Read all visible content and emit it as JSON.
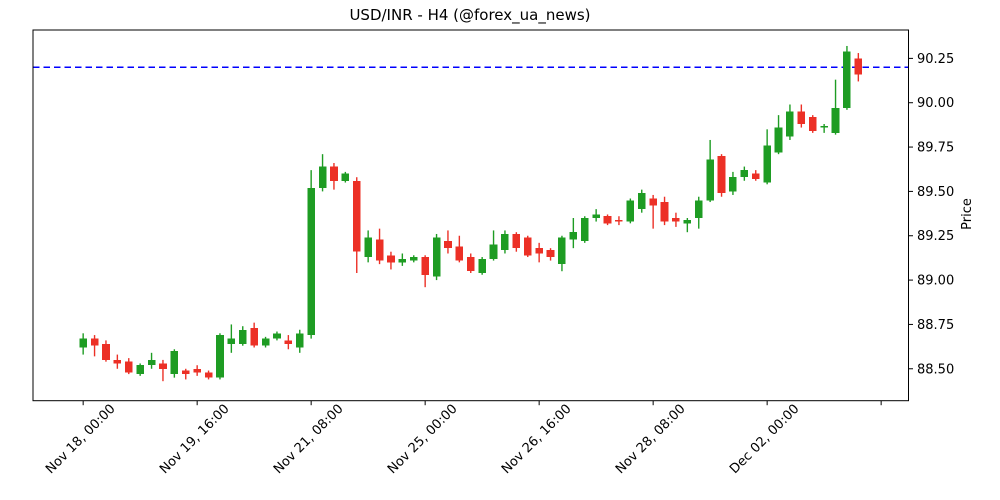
{
  "title": "USD/INR - H4 (@forex_ua_news)",
  "y_axis": {
    "label": "Price",
    "ticks": [
      "88.50",
      "88.75",
      "89.00",
      "89.25",
      "89.50",
      "89.75",
      "90.00",
      "90.25"
    ]
  },
  "x_axis": {
    "ticks": [
      {
        "index": 0,
        "label": "Nov 18, 00:00"
      },
      {
        "index": 10,
        "label": "Nov 19, 16:00"
      },
      {
        "index": 20,
        "label": "Nov 21, 08:00"
      },
      {
        "index": 30,
        "label": "Nov 25, 00:00"
      },
      {
        "index": 40,
        "label": "Nov 26, 16:00"
      },
      {
        "index": 50,
        "label": "Nov 28, 08:00"
      },
      {
        "index": 60,
        "label": "Dec 02, 00:00"
      },
      {
        "index": 70,
        "label": ""
      }
    ]
  },
  "colors": {
    "up": "#1e9c23",
    "down": "#ec3026",
    "hline": "#0000ff",
    "axis": "#000000"
  },
  "hline_price": 90.2,
  "chart_data": {
    "type": "candlestick",
    "symbol": "USD/INR",
    "timeframe": "H4",
    "title": "USD/INR - H4 (@forex_ua_news)",
    "ylabel": "Price",
    "grid": false,
    "legend": "none",
    "ylim": [
      88.32,
      90.41
    ],
    "x_index_range": [
      -4.4,
      72.4
    ],
    "hline": 90.2,
    "candles": [
      {
        "time": "Nov 18, 00:00",
        "o": 88.62,
        "h": 88.7,
        "l": 88.58,
        "c": 88.67
      },
      {
        "time": "Nov 18, 04:00",
        "o": 88.67,
        "h": 88.69,
        "l": 88.57,
        "c": 88.63
      },
      {
        "time": "Nov 18, 08:00",
        "o": 88.64,
        "h": 88.66,
        "l": 88.54,
        "c": 88.55
      },
      {
        "time": "Nov 18, 12:00",
        "o": 88.55,
        "h": 88.58,
        "l": 88.5,
        "c": 88.53
      },
      {
        "time": "Nov 18, 16:00",
        "o": 88.54,
        "h": 88.56,
        "l": 88.47,
        "c": 88.48
      },
      {
        "time": "Nov 18, 20:00",
        "o": 88.47,
        "h": 88.53,
        "l": 88.46,
        "c": 88.52
      },
      {
        "time": "Nov 19, 00:00",
        "o": 88.52,
        "h": 88.59,
        "l": 88.5,
        "c": 88.55
      },
      {
        "time": "Nov 19, 04:00",
        "o": 88.53,
        "h": 88.55,
        "l": 88.43,
        "c": 88.5
      },
      {
        "time": "Nov 19, 08:00",
        "o": 88.47,
        "h": 88.61,
        "l": 88.45,
        "c": 88.6
      },
      {
        "time": "Nov 19, 12:00",
        "o": 88.49,
        "h": 88.5,
        "l": 88.44,
        "c": 88.47
      },
      {
        "time": "Nov 19, 16:00",
        "o": 88.5,
        "h": 88.52,
        "l": 88.46,
        "c": 88.48
      },
      {
        "time": "Nov 19, 20:00",
        "o": 88.48,
        "h": 88.49,
        "l": 88.44,
        "c": 88.45
      },
      {
        "time": "Nov 20, 00:00",
        "o": 88.45,
        "h": 88.7,
        "l": 88.44,
        "c": 88.69
      },
      {
        "time": "Nov 20, 04:00",
        "o": 88.64,
        "h": 88.75,
        "l": 88.59,
        "c": 88.67
      },
      {
        "time": "Nov 20, 08:00",
        "o": 88.64,
        "h": 88.74,
        "l": 88.63,
        "c": 88.72
      },
      {
        "time": "Nov 20, 12:00",
        "o": 88.73,
        "h": 88.76,
        "l": 88.62,
        "c": 88.63
      },
      {
        "time": "Nov 20, 16:00",
        "o": 88.63,
        "h": 88.68,
        "l": 88.62,
        "c": 88.67
      },
      {
        "time": "Nov 20, 20:00",
        "o": 88.67,
        "h": 88.71,
        "l": 88.66,
        "c": 88.7
      },
      {
        "time": "Nov 21, 00:00",
        "o": 88.66,
        "h": 88.69,
        "l": 88.61,
        "c": 88.64
      },
      {
        "time": "Nov 21, 04:00",
        "o": 88.62,
        "h": 88.72,
        "l": 88.59,
        "c": 88.7
      },
      {
        "time": "Nov 21, 08:00",
        "o": 88.69,
        "h": 89.62,
        "l": 88.67,
        "c": 89.52
      },
      {
        "time": "Nov 21, 12:00",
        "o": 89.52,
        "h": 89.71,
        "l": 89.5,
        "c": 89.64
      },
      {
        "time": "Nov 21, 16:00",
        "o": 89.64,
        "h": 89.66,
        "l": 89.51,
        "c": 89.56
      },
      {
        "time": "Nov 21, 20:00",
        "o": 89.56,
        "h": 89.61,
        "l": 89.55,
        "c": 89.6
      },
      {
        "time": "Nov 22, 00:00",
        "o": 89.56,
        "h": 89.58,
        "l": 89.04,
        "c": 89.16
      },
      {
        "time": "Nov 22, 04:00",
        "o": 89.13,
        "h": 89.28,
        "l": 89.1,
        "c": 89.24
      },
      {
        "time": "Nov 22, 08:00",
        "o": 89.23,
        "h": 89.29,
        "l": 89.09,
        "c": 89.11
      },
      {
        "time": "Nov 22, 12:00",
        "o": 89.14,
        "h": 89.16,
        "l": 89.06,
        "c": 89.1
      },
      {
        "time": "Nov 22, 16:00",
        "o": 89.1,
        "h": 89.15,
        "l": 89.08,
        "c": 89.12
      },
      {
        "time": "Nov 22, 20:00",
        "o": 89.11,
        "h": 89.14,
        "l": 89.1,
        "c": 89.13
      },
      {
        "time": "Nov 25, 00:00",
        "o": 89.13,
        "h": 89.14,
        "l": 88.96,
        "c": 89.03
      },
      {
        "time": "Nov 25, 04:00",
        "o": 89.02,
        "h": 89.26,
        "l": 89.0,
        "c": 89.24
      },
      {
        "time": "Nov 25, 08:00",
        "o": 89.22,
        "h": 89.28,
        "l": 89.15,
        "c": 89.18
      },
      {
        "time": "Nov 25, 12:00",
        "o": 89.19,
        "h": 89.25,
        "l": 89.1,
        "c": 89.11
      },
      {
        "time": "Nov 25, 16:00",
        "o": 89.13,
        "h": 89.15,
        "l": 89.04,
        "c": 89.05
      },
      {
        "time": "Nov 25, 20:00",
        "o": 89.04,
        "h": 89.13,
        "l": 89.03,
        "c": 89.12
      },
      {
        "time": "Nov 26, 00:00",
        "o": 89.12,
        "h": 89.28,
        "l": 89.11,
        "c": 89.2
      },
      {
        "time": "Nov 26, 04:00",
        "o": 89.17,
        "h": 89.28,
        "l": 89.15,
        "c": 89.26
      },
      {
        "time": "Nov 26, 08:00",
        "o": 89.26,
        "h": 89.27,
        "l": 89.16,
        "c": 89.18
      },
      {
        "time": "Nov 26, 12:00",
        "o": 89.24,
        "h": 89.25,
        "l": 89.13,
        "c": 89.14
      },
      {
        "time": "Nov 26, 16:00",
        "o": 89.18,
        "h": 89.21,
        "l": 89.1,
        "c": 89.15
      },
      {
        "time": "Nov 26, 20:00",
        "o": 89.17,
        "h": 89.18,
        "l": 89.11,
        "c": 89.13
      },
      {
        "time": "Nov 27, 00:00",
        "o": 89.09,
        "h": 89.25,
        "l": 89.05,
        "c": 89.24
      },
      {
        "time": "Nov 27, 04:00",
        "o": 89.23,
        "h": 89.35,
        "l": 89.18,
        "c": 89.27
      },
      {
        "time": "Nov 27, 08:00",
        "o": 89.22,
        "h": 89.36,
        "l": 89.21,
        "c": 89.35
      },
      {
        "time": "Nov 27, 12:00",
        "o": 89.35,
        "h": 89.4,
        "l": 89.33,
        "c": 89.37
      },
      {
        "time": "Nov 27, 16:00",
        "o": 89.36,
        "h": 89.37,
        "l": 89.31,
        "c": 89.32
      },
      {
        "time": "Nov 27, 20:00",
        "o": 89.34,
        "h": 89.36,
        "l": 89.31,
        "c": 89.33
      },
      {
        "time": "Nov 28, 00:00",
        "o": 89.33,
        "h": 89.46,
        "l": 89.32,
        "c": 89.45
      },
      {
        "time": "Nov 28, 04:00",
        "o": 89.4,
        "h": 89.51,
        "l": 89.38,
        "c": 89.49
      },
      {
        "time": "Nov 28, 08:00",
        "o": 89.46,
        "h": 89.48,
        "l": 89.29,
        "c": 89.42
      },
      {
        "time": "Nov 28, 12:00",
        "o": 89.44,
        "h": 89.47,
        "l": 89.31,
        "c": 89.33
      },
      {
        "time": "Nov 28, 16:00",
        "o": 89.35,
        "h": 89.38,
        "l": 89.3,
        "c": 89.33
      },
      {
        "time": "Nov 28, 20:00",
        "o": 89.32,
        "h": 89.35,
        "l": 89.27,
        "c": 89.34
      },
      {
        "time": "Nov 29, 00:00",
        "o": 89.35,
        "h": 89.47,
        "l": 89.29,
        "c": 89.45
      },
      {
        "time": "Nov 29, 04:00",
        "o": 89.45,
        "h": 89.79,
        "l": 89.44,
        "c": 89.68
      },
      {
        "time": "Nov 29, 08:00",
        "o": 89.7,
        "h": 89.71,
        "l": 89.47,
        "c": 89.49
      },
      {
        "time": "Nov 29, 12:00",
        "o": 89.5,
        "h": 89.61,
        "l": 89.48,
        "c": 89.58
      },
      {
        "time": "Nov 29, 16:00",
        "o": 89.58,
        "h": 89.64,
        "l": 89.56,
        "c": 89.62
      },
      {
        "time": "Nov 29, 20:00",
        "o": 89.6,
        "h": 89.62,
        "l": 89.56,
        "c": 89.57
      },
      {
        "time": "Dec 02, 00:00",
        "o": 89.55,
        "h": 89.85,
        "l": 89.54,
        "c": 89.76
      },
      {
        "time": "Dec 02, 04:00",
        "o": 89.72,
        "h": 89.93,
        "l": 89.71,
        "c": 89.86
      },
      {
        "time": "Dec 02, 08:00",
        "o": 89.81,
        "h": 89.99,
        "l": 89.79,
        "c": 89.95
      },
      {
        "time": "Dec 02, 12:00",
        "o": 89.95,
        "h": 89.99,
        "l": 89.86,
        "c": 89.88
      },
      {
        "time": "Dec 02, 16:00",
        "o": 89.92,
        "h": 89.93,
        "l": 89.83,
        "c": 89.84
      },
      {
        "time": "Dec 02, 20:00",
        "o": 89.86,
        "h": 89.88,
        "l": 89.83,
        "c": 89.87
      },
      {
        "time": "Dec 03, 00:00",
        "o": 89.83,
        "h": 90.13,
        "l": 89.82,
        "c": 89.97
      },
      {
        "time": "Dec 03, 04:00",
        "o": 89.97,
        "h": 90.32,
        "l": 89.96,
        "c": 90.29
      },
      {
        "time": "Dec 03, 08:00",
        "o": 90.25,
        "h": 90.28,
        "l": 90.12,
        "c": 90.16
      }
    ]
  }
}
